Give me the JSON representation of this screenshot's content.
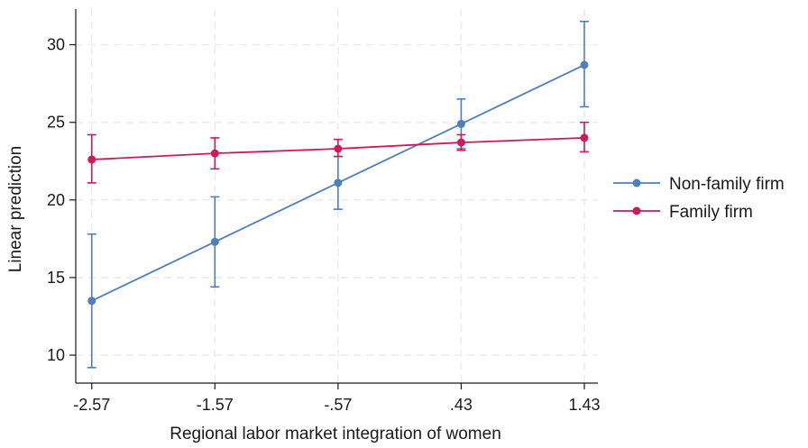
{
  "chart_data": {
    "type": "line",
    "title": "",
    "xlabel": "Regional labor market integration of women",
    "ylabel": "Linear prediction",
    "x": [
      -2.57,
      -1.57,
      -0.57,
      0.43,
      1.43
    ],
    "x_tick_labels": [
      "-2.57",
      "-1.57",
      "-.57",
      ".43",
      "1.43"
    ],
    "y_ticks": [
      10,
      15,
      20,
      25,
      30
    ],
    "y_tick_labels": [
      "10",
      "15",
      "20",
      "25",
      "30"
    ],
    "xlim": [
      -2.7,
      1.54
    ],
    "ylim": [
      8.2,
      32.3
    ],
    "grid": true,
    "legend_position": "right",
    "series": [
      {
        "name": "Non-family firm",
        "color": "#4f7fb9",
        "values": [
          13.5,
          17.3,
          21.1,
          24.9,
          28.7
        ],
        "ci_low": [
          9.2,
          14.4,
          19.4,
          23.3,
          26.0
        ],
        "ci_high": [
          17.8,
          20.2,
          22.8,
          26.5,
          31.5
        ]
      },
      {
        "name": "Family firm",
        "color": "#d0185a",
        "values": [
          22.6,
          23.0,
          23.3,
          23.7,
          24.0
        ],
        "ci_low": [
          21.1,
          22.0,
          22.8,
          23.2,
          23.1
        ],
        "ci_high": [
          24.2,
          24.0,
          23.9,
          24.2,
          25.0
        ]
      }
    ]
  }
}
